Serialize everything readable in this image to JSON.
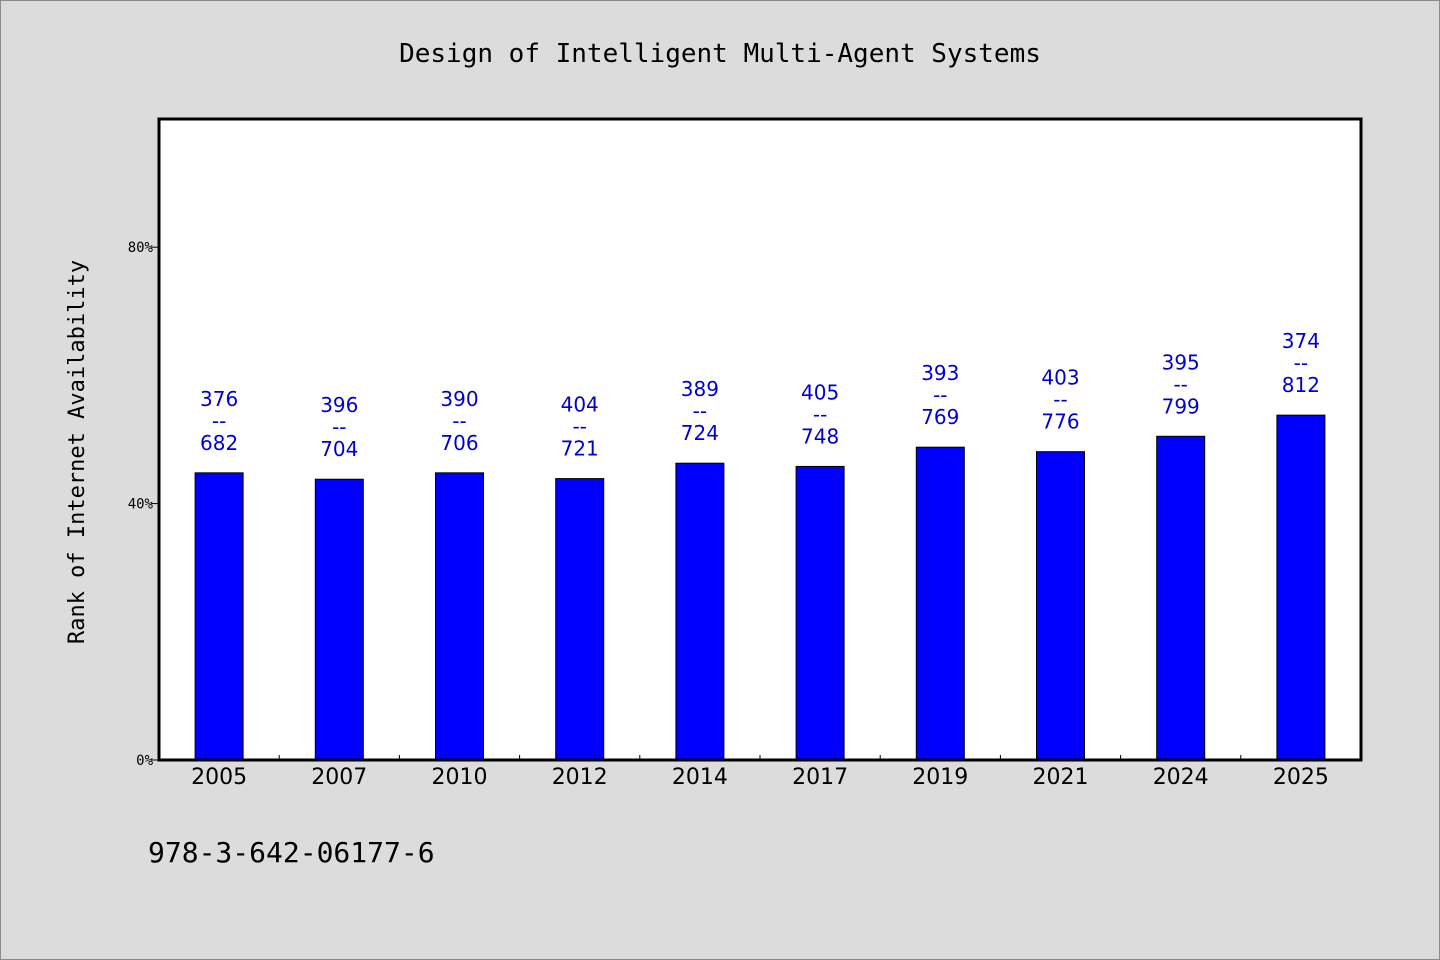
{
  "chart_data": {
    "type": "bar",
    "title": "Design of Intelligent Multi-Agent Systems",
    "ylabel": "Rank of Internet Availability",
    "xlabel": "",
    "categories": [
      "2005",
      "2007",
      "2010",
      "2012",
      "2014",
      "2017",
      "2019",
      "2021",
      "2024",
      "2025"
    ],
    "values": [
      44.8,
      43.8,
      44.8,
      43.9,
      46.3,
      45.8,
      48.8,
      48.1,
      50.5,
      53.8
    ],
    "data_labels": [
      {
        "top": "376",
        "mid": "--",
        "bottom": "682"
      },
      {
        "top": "396",
        "mid": "--",
        "bottom": "704"
      },
      {
        "top": "390",
        "mid": "--",
        "bottom": "706"
      },
      {
        "top": "404",
        "mid": "--",
        "bottom": "721"
      },
      {
        "top": "389",
        "mid": "--",
        "bottom": "724"
      },
      {
        "top": "405",
        "mid": "--",
        "bottom": "748"
      },
      {
        "top": "393",
        "mid": "--",
        "bottom": "769"
      },
      {
        "top": "403",
        "mid": "--",
        "bottom": "776"
      },
      {
        "top": "395",
        "mid": "--",
        "bottom": "799"
      },
      {
        "top": "374",
        "mid": "--",
        "bottom": "812"
      }
    ],
    "ylim": [
      0,
      100
    ],
    "yticks": [
      {
        "value": 0,
        "label": "0%"
      },
      {
        "value": 40,
        "label": "40%"
      },
      {
        "value": 80,
        "label": "80%"
      }
    ],
    "grid": false,
    "bar_color": "#0000ff",
    "label_color": "#0000cc",
    "background_color": "#dcdcdc",
    "plot_background_color": "#ffffff"
  },
  "footer": {
    "text": "978-3-642-06177-6"
  }
}
